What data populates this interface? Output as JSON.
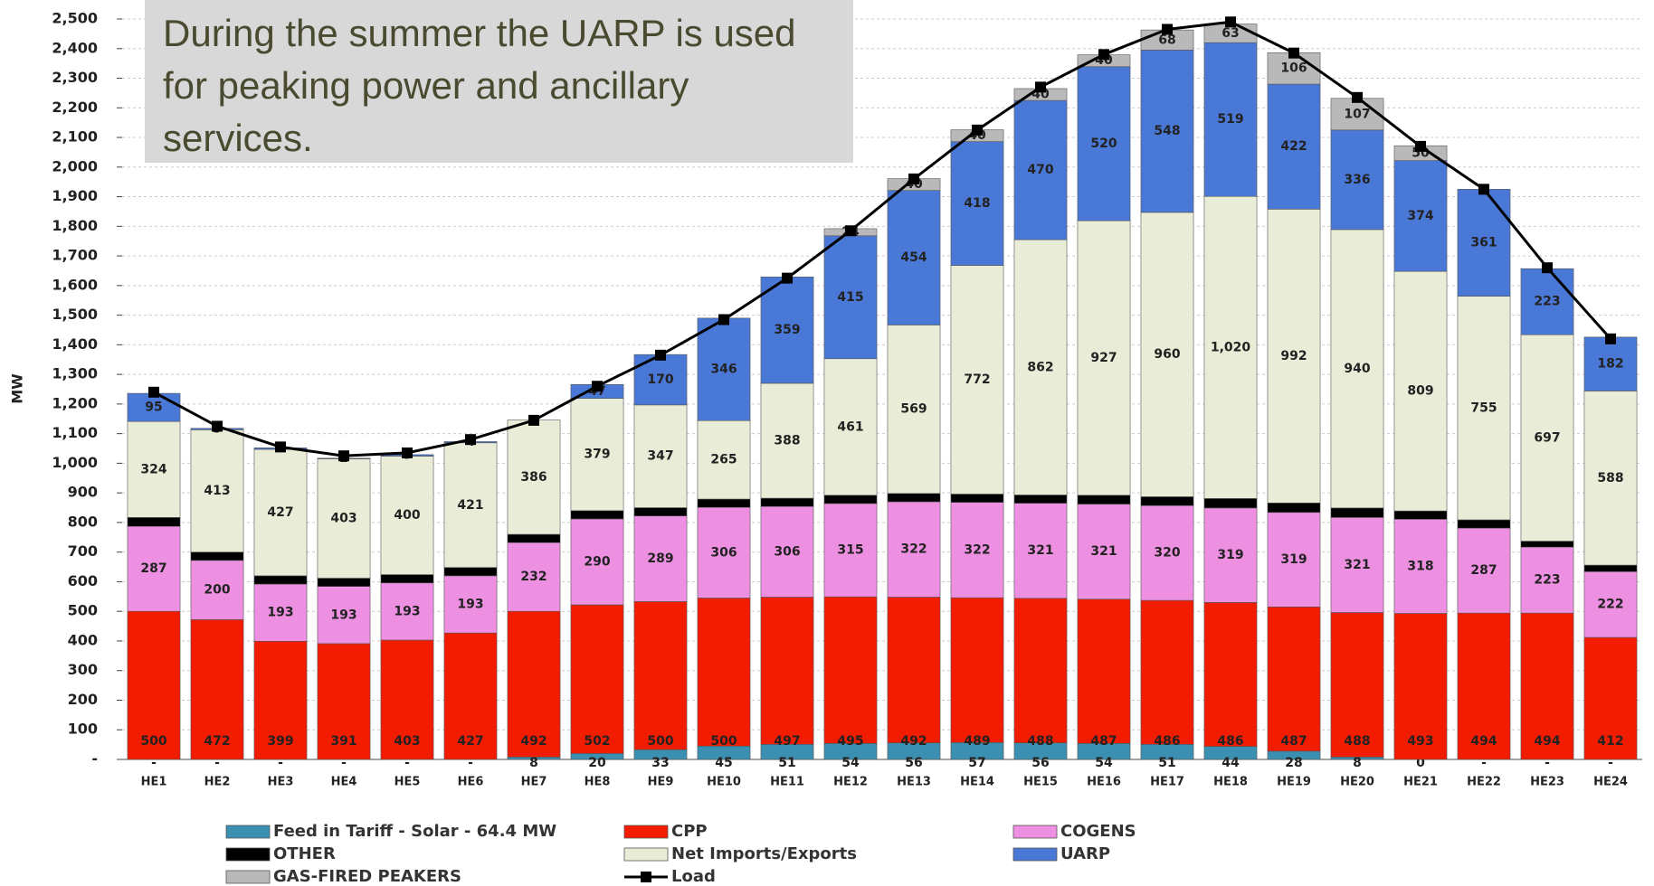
{
  "chart_data": {
    "type": "stacked-bar-line",
    "annotation": "During the summer the UARP is used for peaking power and ancillary services.",
    "y_label": "MW",
    "categories": [
      "HE1",
      "HE2",
      "HE3",
      "HE4",
      "HE5",
      "HE6",
      "HE7",
      "HE8",
      "HE9",
      "HE10",
      "HE11",
      "HE12",
      "HE13",
      "HE14",
      "HE15",
      "HE16",
      "HE17",
      "HE18",
      "HE19",
      "HE20",
      "HE21",
      "HE22",
      "HE23",
      "HE24"
    ],
    "series": [
      {
        "name": "Feed in Tariff - Solar - 64.4 MW",
        "color": "#3b8fb0",
        "show_labels": true,
        "values": [
          0,
          0,
          0,
          0,
          0,
          0,
          8,
          20,
          33,
          45,
          51,
          54,
          56,
          57,
          56,
          54,
          51,
          44,
          28,
          8,
          0,
          0,
          0,
          0
        ],
        "value_labels": [
          "-",
          "-",
          "-",
          "-",
          "-",
          "-",
          "8",
          "20",
          "33",
          "45",
          "51",
          "54",
          "56",
          "57",
          "56",
          "54",
          "51",
          "44",
          "28",
          "8",
          "0",
          "-",
          "-",
          "-"
        ]
      },
      {
        "name": "CPP",
        "color": "#f21c00",
        "show_labels": true,
        "values": [
          500,
          472,
          399,
          391,
          403,
          427,
          492,
          502,
          500,
          500,
          497,
          495,
          492,
          489,
          488,
          487,
          486,
          486,
          487,
          488,
          493,
          494,
          494,
          412
        ]
      },
      {
        "name": "COGENS",
        "color": "#ee90e2",
        "show_labels": true,
        "values": [
          287,
          200,
          193,
          193,
          193,
          193,
          232,
          290,
          289,
          306,
          306,
          315,
          322,
          322,
          321,
          321,
          320,
          319,
          319,
          321,
          318,
          287,
          223,
          222
        ]
      },
      {
        "name": "OTHER",
        "color": "#000000",
        "show_labels": false,
        "values": [
          30,
          28,
          28,
          28,
          28,
          28,
          28,
          28,
          28,
          28,
          28,
          28,
          28,
          28,
          28,
          30,
          30,
          32,
          32,
          32,
          28,
          28,
          20,
          22
        ]
      },
      {
        "name": "Net Imports/Exports",
        "color": "#e9edd8",
        "show_labels": true,
        "values": [
          324,
          413,
          427,
          403,
          400,
          421,
          386,
          379,
          347,
          265,
          388,
          461,
          569,
          772,
          862,
          927,
          960,
          1020,
          992,
          940,
          809,
          755,
          697,
          588
        ],
        "value_labels": [
          "324",
          "413",
          "427",
          "403",
          "400",
          "421",
          "386",
          "379",
          "347",
          "265",
          "388",
          "461",
          "569",
          "772",
          "862",
          "927",
          "960",
          "1,020",
          "992",
          "940",
          "809",
          "755",
          "697",
          "588"
        ]
      },
      {
        "name": "UARP",
        "color": "#4a78d6",
        "show_labels": true,
        "values": [
          95,
          5,
          5,
          2,
          5,
          4,
          null,
          47,
          170,
          346,
          359,
          415,
          454,
          418,
          470,
          520,
          548,
          519,
          422,
          336,
          374,
          361,
          223,
          182
        ]
      },
      {
        "name": "GAS-FIRED PEAKERS",
        "color": "#b9b9b9",
        "show_labels": true,
        "values": [
          null,
          null,
          null,
          null,
          null,
          null,
          null,
          null,
          null,
          null,
          null,
          24,
          40,
          40,
          40,
          40,
          68,
          63,
          106,
          107,
          50,
          null,
          null,
          null
        ]
      }
    ],
    "line": {
      "name": "Load",
      "color": "#000000",
      "values": [
        1240,
        1125,
        1055,
        1025,
        1035,
        1080,
        1145,
        1260,
        1365,
        1485,
        1625,
        1785,
        1960,
        2125,
        2270,
        2380,
        2465,
        2490,
        2385,
        2235,
        2070,
        1925,
        1660,
        1420
      ]
    },
    "ylim": [
      0,
      2500
    ],
    "yticks": [
      {
        "value": 0,
        "label": "-"
      },
      100,
      200,
      300,
      400,
      500,
      600,
      700,
      800,
      900,
      {
        "value": 1000,
        "label": "1,000"
      },
      {
        "value": 1100,
        "label": "1,100"
      },
      {
        "value": 1200,
        "label": "1,200"
      },
      {
        "value": 1300,
        "label": "1,300"
      },
      {
        "value": 1400,
        "label": "1,400"
      },
      {
        "value": 1500,
        "label": "1,500"
      },
      {
        "value": 1600,
        "label": "1,600"
      },
      {
        "value": 1700,
        "label": "1,700"
      },
      {
        "value": 1800,
        "label": "1,800"
      },
      {
        "value": 1900,
        "label": "1,900"
      },
      {
        "value": 2000,
        "label": "2,000"
      },
      {
        "value": 2100,
        "label": "2,100"
      },
      {
        "value": 2200,
        "label": "2,200"
      },
      {
        "value": 2300,
        "label": "2,300"
      },
      {
        "value": 2400,
        "label": "2,400"
      },
      {
        "value": 2500,
        "label": "2,500"
      }
    ],
    "grid": true
  }
}
